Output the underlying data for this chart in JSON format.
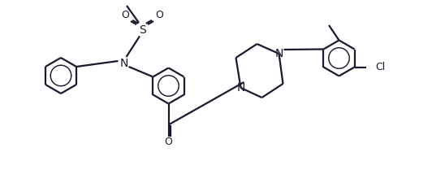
{
  "background_color": "#ffffff",
  "line_color": "#1a1a2e",
  "line_width": 1.6,
  "font_size": 8.5,
  "figsize": [
    5.32,
    2.14
  ],
  "dpi": 100,
  "xlim": [
    0,
    10.64
  ],
  "ylim": [
    0,
    4.28
  ]
}
